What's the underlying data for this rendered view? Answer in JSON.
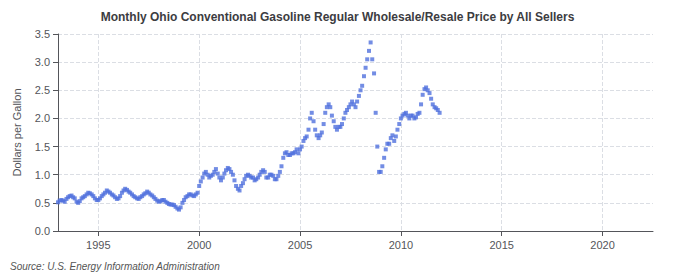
{
  "chart_data": {
    "type": "scatter",
    "title": "Monthly Ohio Conventional Gasoline Regular Wholesale/Resale Price by All Sellers",
    "ylabel": "Dollars per Gallon",
    "annotations": [
      "Source: U.S. Energy Information Administration"
    ],
    "marker": "square",
    "grid": true,
    "xlim": [
      1993.0,
      2022.5
    ],
    "ylim": [
      0.0,
      3.5
    ],
    "xticks": [
      1995,
      2000,
      2005,
      2010,
      2015,
      2020
    ],
    "yticks": [
      {
        "value": 0.0,
        "label": "0.0"
      },
      0.5,
      {
        "value": 1.0,
        "label": "1.0"
      },
      1.5,
      {
        "value": 2.0,
        "label": "2.0"
      },
      2.5,
      {
        "value": 3.0,
        "label": "3.0"
      },
      3.5
    ],
    "x": [
      1993.0,
      1993.08,
      1993.17,
      1993.25,
      1993.33,
      1993.42,
      1993.5,
      1993.58,
      1993.67,
      1993.75,
      1993.83,
      1993.92,
      1994.0,
      1994.08,
      1994.17,
      1994.25,
      1994.33,
      1994.42,
      1994.5,
      1994.58,
      1994.67,
      1994.75,
      1994.83,
      1994.92,
      1995.0,
      1995.08,
      1995.17,
      1995.25,
      1995.33,
      1995.42,
      1995.5,
      1995.58,
      1995.67,
      1995.75,
      1995.83,
      1995.92,
      1996.0,
      1996.08,
      1996.17,
      1996.25,
      1996.33,
      1996.42,
      1996.5,
      1996.58,
      1996.67,
      1996.75,
      1996.83,
      1996.92,
      1997.0,
      1997.08,
      1997.17,
      1997.25,
      1997.33,
      1997.42,
      1997.5,
      1997.58,
      1997.67,
      1997.75,
      1997.83,
      1997.92,
      1998.0,
      1998.08,
      1998.17,
      1998.25,
      1998.33,
      1998.42,
      1998.5,
      1998.58,
      1998.67,
      1998.75,
      1998.83,
      1998.92,
      1999.0,
      1999.08,
      1999.17,
      1999.25,
      1999.33,
      1999.42,
      1999.5,
      1999.58,
      1999.67,
      1999.75,
      1999.83,
      1999.92,
      2000.0,
      2000.08,
      2000.17,
      2000.25,
      2000.33,
      2000.42,
      2000.5,
      2000.58,
      2000.67,
      2000.75,
      2000.83,
      2000.92,
      2001.0,
      2001.08,
      2001.17,
      2001.25,
      2001.33,
      2001.42,
      2001.5,
      2001.58,
      2001.67,
      2001.75,
      2001.83,
      2001.92,
      2002.0,
      2002.08,
      2002.17,
      2002.25,
      2002.33,
      2002.42,
      2002.5,
      2002.58,
      2002.67,
      2002.75,
      2002.83,
      2002.92,
      2003.0,
      2003.08,
      2003.17,
      2003.25,
      2003.33,
      2003.42,
      2003.5,
      2003.58,
      2003.67,
      2003.75,
      2003.83,
      2003.92,
      2004.0,
      2004.08,
      2004.17,
      2004.25,
      2004.33,
      2004.42,
      2004.5,
      2004.58,
      2004.67,
      2004.75,
      2004.83,
      2004.92,
      2005.0,
      2005.08,
      2005.17,
      2005.25,
      2005.33,
      2005.42,
      2005.5,
      2005.58,
      2005.67,
      2005.75,
      2005.83,
      2005.92,
      2006.0,
      2006.08,
      2006.17,
      2006.25,
      2006.33,
      2006.42,
      2006.5,
      2006.58,
      2006.67,
      2006.75,
      2006.83,
      2006.92,
      2007.0,
      2007.08,
      2007.17,
      2007.25,
      2007.33,
      2007.42,
      2007.5,
      2007.58,
      2007.67,
      2007.75,
      2007.83,
      2007.92,
      2008.0,
      2008.08,
      2008.17,
      2008.25,
      2008.33,
      2008.42,
      2008.5,
      2008.58,
      2008.67,
      2008.75,
      2008.83,
      2008.92,
      2009.0,
      2009.08,
      2009.17,
      2009.25,
      2009.33,
      2009.42,
      2009.5,
      2009.58,
      2009.67,
      2009.75,
      2009.83,
      2009.92,
      2010.0,
      2010.08,
      2010.17,
      2010.25,
      2010.33,
      2010.42,
      2010.5,
      2010.58,
      2010.67,
      2010.75,
      2010.83,
      2010.92,
      2011.0,
      2011.08,
      2011.17,
      2011.25,
      2011.33,
      2011.42,
      2011.5,
      2011.58,
      2011.67,
      2011.75,
      2011.83,
      2011.92
    ],
    "values": [
      0.51,
      0.54,
      0.55,
      0.54,
      0.52,
      0.57,
      0.6,
      0.62,
      0.63,
      0.6,
      0.58,
      0.52,
      0.5,
      0.53,
      0.58,
      0.6,
      0.62,
      0.65,
      0.68,
      0.67,
      0.65,
      0.62,
      0.58,
      0.55,
      0.55,
      0.58,
      0.62,
      0.65,
      0.68,
      0.72,
      0.7,
      0.68,
      0.65,
      0.63,
      0.6,
      0.57,
      0.58,
      0.62,
      0.68,
      0.72,
      0.75,
      0.73,
      0.7,
      0.68,
      0.65,
      0.62,
      0.6,
      0.58,
      0.57,
      0.6,
      0.62,
      0.65,
      0.67,
      0.7,
      0.68,
      0.65,
      0.63,
      0.6,
      0.57,
      0.54,
      0.52,
      0.53,
      0.55,
      0.55,
      0.52,
      0.5,
      0.48,
      0.47,
      0.47,
      0.46,
      0.43,
      0.4,
      0.38,
      0.42,
      0.5,
      0.55,
      0.6,
      0.62,
      0.65,
      0.65,
      0.63,
      0.62,
      0.65,
      0.68,
      0.8,
      0.88,
      0.95,
      1.02,
      1.05,
      1.0,
      0.95,
      0.98,
      1.0,
      1.05,
      1.1,
      1.02,
      0.95,
      0.9,
      0.95,
      1.02,
      1.08,
      1.12,
      1.1,
      1.05,
      1.0,
      0.9,
      0.8,
      0.75,
      0.72,
      0.8,
      0.85,
      0.92,
      0.98,
      1.0,
      0.98,
      0.95,
      0.95,
      0.9,
      0.92,
      0.95,
      1.0,
      1.05,
      1.08,
      1.05,
      0.95,
      0.95,
      1.0,
      1.0,
      0.98,
      0.92,
      0.92,
      0.98,
      1.05,
      1.15,
      1.3,
      1.38,
      1.4,
      1.35,
      1.35,
      1.38,
      1.38,
      1.4,
      1.45,
      1.38,
      1.45,
      1.5,
      1.6,
      1.65,
      1.68,
      1.8,
      2.0,
      2.1,
      1.95,
      1.8,
      1.7,
      1.65,
      1.7,
      1.75,
      1.9,
      2.1,
      2.2,
      2.25,
      2.2,
      2.05,
      1.95,
      1.85,
      1.8,
      1.85,
      1.85,
      1.9,
      2.0,
      2.1,
      2.15,
      2.2,
      2.25,
      2.3,
      2.25,
      2.2,
      2.3,
      2.4,
      2.5,
      2.58,
      2.75,
      2.9,
      3.05,
      3.2,
      3.35,
      3.05,
      2.8,
      2.1,
      1.5,
      1.05,
      1.05,
      1.15,
      1.3,
      1.45,
      1.55,
      1.55,
      1.65,
      1.7,
      1.6,
      1.68,
      1.8,
      1.9,
      2.0,
      2.05,
      2.08,
      2.1,
      2.05,
      2.0,
      2.05,
      2.05,
      2.0,
      2.02,
      2.08,
      2.1,
      2.25,
      2.42,
      2.52,
      2.55,
      2.5,
      2.45,
      2.35,
      2.25,
      2.2,
      2.18,
      2.15,
      2.1
    ]
  }
}
